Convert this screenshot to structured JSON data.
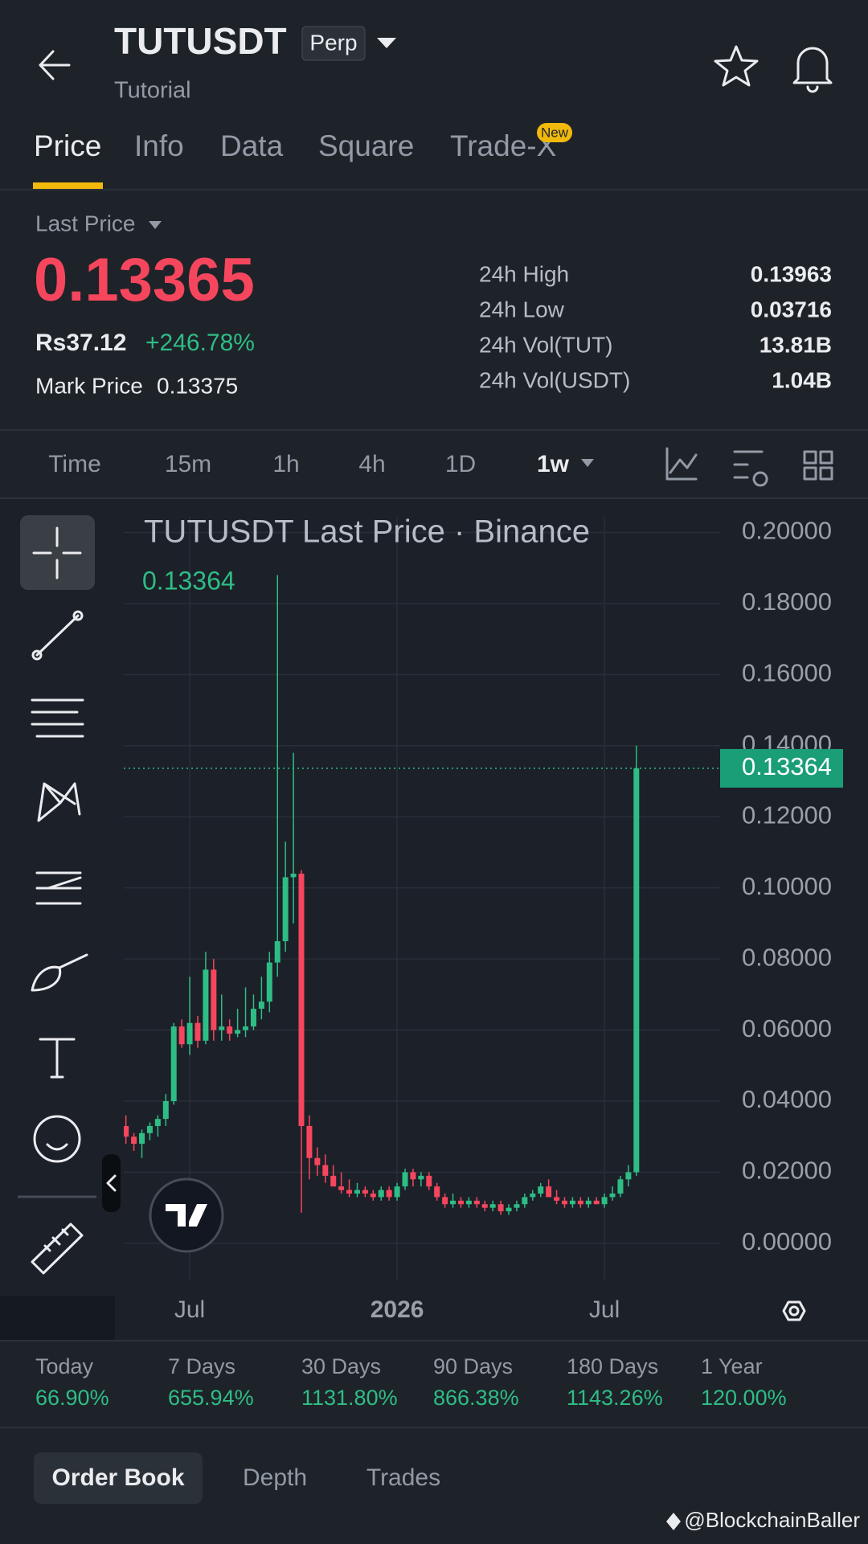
{
  "header": {
    "title": "TUTUSDT",
    "badge": "Perp",
    "subtitle": "Tutorial"
  },
  "tabs": [
    "Price",
    "Info",
    "Data",
    "Square",
    "Trade-X"
  ],
  "tab_badge": "New",
  "price": {
    "label": "Last Price",
    "last": "0.13365",
    "local": "Rs37.12",
    "change": "+246.78%",
    "mark_label": "Mark Price",
    "mark": "0.13375"
  },
  "stats": [
    {
      "label": "24h High",
      "value": "0.13963"
    },
    {
      "label": "24h Low",
      "value": "0.03716"
    },
    {
      "label": "24h Vol(TUT)",
      "value": "13.81B"
    },
    {
      "label": "24h Vol(USDT)",
      "value": "1.04B"
    }
  ],
  "intervals": [
    "Time",
    "15m",
    "1h",
    "4h",
    "1D",
    "1w"
  ],
  "chart_data": {
    "type": "candlestick",
    "title": "TUTUSDT Last Price · Binance",
    "open": [
      0.033,
      0.03,
      0.028,
      0.031,
      0.033,
      0.035,
      0.04,
      0.061,
      0.056,
      0.062,
      0.057,
      0.077,
      0.06,
      0.061,
      0.059,
      0.06,
      0.061,
      0.066,
      0.068,
      0.079,
      0.085,
      0.103,
      0.104,
      0.033,
      0.024,
      0.022,
      0.019,
      0.016,
      0.015,
      0.014,
      0.015,
      0.014,
      0.013,
      0.015,
      0.013,
      0.016,
      0.02,
      0.018,
      0.019,
      0.016,
      0.013,
      0.011,
      0.012,
      0.011,
      0.012,
      0.011,
      0.01,
      0.011,
      0.009,
      0.01,
      0.011,
      0.013,
      0.014,
      0.016,
      0.013,
      0.012,
      0.011,
      0.012,
      0.011,
      0.012,
      0.011,
      0.013,
      0.014,
      0.018,
      0.02
    ],
    "high": [
      0.036,
      0.031,
      0.032,
      0.034,
      0.036,
      0.042,
      0.062,
      0.063,
      0.075,
      0.064,
      0.082,
      0.08,
      0.07,
      0.063,
      0.066,
      0.072,
      0.07,
      0.075,
      0.082,
      0.188,
      0.113,
      0.138,
      0.105,
      0.036,
      0.027,
      0.025,
      0.022,
      0.02,
      0.018,
      0.017,
      0.016,
      0.015,
      0.016,
      0.016,
      0.017,
      0.021,
      0.021,
      0.02,
      0.02,
      0.017,
      0.014,
      0.014,
      0.013,
      0.013,
      0.013,
      0.012,
      0.012,
      0.012,
      0.011,
      0.012,
      0.014,
      0.015,
      0.017,
      0.018,
      0.015,
      0.013,
      0.013,
      0.013,
      0.013,
      0.013,
      0.014,
      0.016,
      0.019,
      0.022,
      0.14
    ],
    "low": [
      0.028,
      0.026,
      0.024,
      0.029,
      0.03,
      0.033,
      0.039,
      0.055,
      0.053,
      0.055,
      0.056,
      0.057,
      0.057,
      0.057,
      0.058,
      0.058,
      0.06,
      0.063,
      0.065,
      0.075,
      0.082,
      0.09,
      0.0086,
      0.018,
      0.019,
      0.017,
      0.016,
      0.014,
      0.013,
      0.013,
      0.013,
      0.012,
      0.012,
      0.012,
      0.012,
      0.015,
      0.016,
      0.016,
      0.015,
      0.012,
      0.01,
      0.01,
      0.01,
      0.01,
      0.01,
      0.009,
      0.009,
      0.008,
      0.008,
      0.009,
      0.01,
      0.012,
      0.013,
      0.014,
      0.011,
      0.01,
      0.01,
      0.01,
      0.01,
      0.011,
      0.01,
      0.012,
      0.013,
      0.016,
      0.019
    ],
    "close": [
      0.03,
      0.028,
      0.031,
      0.033,
      0.035,
      0.04,
      0.061,
      0.056,
      0.062,
      0.057,
      0.077,
      0.06,
      0.061,
      0.059,
      0.06,
      0.061,
      0.066,
      0.068,
      0.079,
      0.085,
      0.103,
      0.104,
      0.033,
      0.024,
      0.022,
      0.019,
      0.016,
      0.015,
      0.014,
      0.015,
      0.014,
      0.013,
      0.015,
      0.013,
      0.016,
      0.02,
      0.018,
      0.019,
      0.016,
      0.013,
      0.011,
      0.012,
      0.011,
      0.012,
      0.011,
      0.01,
      0.011,
      0.009,
      0.01,
      0.011,
      0.013,
      0.014,
      0.016,
      0.013,
      0.012,
      0.011,
      0.012,
      0.011,
      0.012,
      0.011,
      0.013,
      0.014,
      0.018,
      0.02,
      0.13364
    ],
    "up_color": "#2ebd85",
    "down_color": "#f6465d",
    "last_price": 0.13364,
    "ylim": [
      -0.0102,
      0.2044
    ],
    "yticks": [
      {
        "value": 0,
        "label": "0.00000"
      },
      {
        "value": 0.02,
        "label": "0.02000"
      },
      {
        "value": 0.04,
        "label": "0.04000"
      },
      {
        "value": 0.06,
        "label": "0.06000"
      },
      {
        "value": 0.08,
        "label": "0.08000"
      },
      {
        "value": 0.1,
        "label": "0.10000"
      },
      {
        "value": 0.12,
        "label": "0.12000"
      },
      {
        "value": 0.14,
        "label": "0.14000"
      },
      {
        "value": 0.16,
        "label": "0.16000"
      },
      {
        "value": 0.18,
        "label": "0.18000"
      },
      {
        "value": 0.2,
        "label": "0.20000"
      }
    ],
    "xlim": [
      -0.27,
      74.5
    ],
    "xticks": [
      {
        "value": 8,
        "label": "Jul"
      },
      {
        "value": 34,
        "label": "2026"
      },
      {
        "value": 60,
        "label": "Jul"
      }
    ],
    "grid": true
  },
  "performance": [
    {
      "label": "Today",
      "value": "66.90%"
    },
    {
      "label": "7 Days",
      "value": "655.94%"
    },
    {
      "label": "30 Days",
      "value": "1131.80%"
    },
    {
      "label": "90 Days",
      "value": "866.38%"
    },
    {
      "label": "180 Days",
      "value": "1143.26%"
    },
    {
      "label": "1 Year",
      "value": "120.00%"
    }
  ],
  "book_tabs": [
    "Order Book",
    "Depth",
    "Trades"
  ],
  "watermark": "@BlockchainBaller"
}
